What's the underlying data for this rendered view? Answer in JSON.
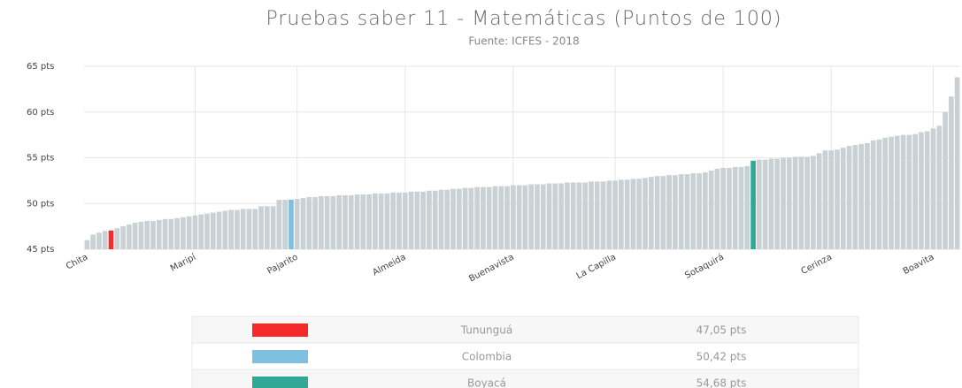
{
  "chart_data": {
    "type": "bar",
    "title": "Pruebas saber 11 - Matemáticas (Puntos de 100)",
    "subtitle": "Fuente: ICFES - 2018",
    "color": "#c9d1d4",
    "grid": true,
    "ylim": [
      45,
      65
    ],
    "yticks": [
      {
        "value": 45,
        "label": "45 pts"
      },
      {
        "value": 50,
        "label": "50 pts"
      },
      {
        "value": 55,
        "label": "55 pts"
      },
      {
        "value": 60,
        "label": "60 pts"
      },
      {
        "value": 65,
        "label": "65 pts"
      }
    ],
    "categories": [
      "Chita",
      null,
      null,
      null,
      null,
      null,
      null,
      null,
      null,
      null,
      null,
      null,
      null,
      null,
      null,
      null,
      null,
      null,
      "Maripí",
      null,
      null,
      null,
      null,
      null,
      null,
      null,
      null,
      null,
      null,
      null,
      null,
      null,
      null,
      null,
      null,
      "Pajarito",
      null,
      null,
      null,
      null,
      null,
      null,
      null,
      null,
      null,
      null,
      null,
      null,
      null,
      null,
      null,
      null,
      null,
      "Almeida",
      null,
      null,
      null,
      null,
      null,
      null,
      null,
      null,
      null,
      null,
      null,
      null,
      null,
      null,
      null,
      null,
      null,
      "Buenavista",
      null,
      null,
      null,
      null,
      null,
      null,
      null,
      null,
      null,
      null,
      null,
      null,
      null,
      null,
      null,
      null,
      "La Capilla",
      null,
      null,
      null,
      null,
      null,
      null,
      null,
      null,
      null,
      null,
      null,
      null,
      null,
      null,
      null,
      null,
      null,
      "Sotaquirá",
      null,
      null,
      null,
      null,
      null,
      null,
      null,
      null,
      null,
      null,
      null,
      null,
      null,
      null,
      null,
      null,
      null,
      "Cerinza",
      null,
      null,
      null,
      null,
      null,
      null,
      null,
      null,
      null,
      null,
      null,
      null,
      null,
      null,
      null,
      null,
      "Boavita",
      null,
      null,
      null,
      null
    ],
    "values": [
      46.0,
      46.6,
      46.8,
      47.0,
      47.05,
      47.3,
      47.5,
      47.7,
      47.9,
      48.0,
      48.1,
      48.1,
      48.2,
      48.3,
      48.3,
      48.4,
      48.5,
      48.6,
      48.7,
      48.8,
      48.9,
      49.0,
      49.1,
      49.2,
      49.3,
      49.3,
      49.4,
      49.4,
      49.4,
      49.7,
      49.7,
      49.7,
      50.4,
      50.4,
      50.42,
      50.5,
      50.6,
      50.7,
      50.7,
      50.8,
      50.8,
      50.8,
      50.9,
      50.9,
      50.9,
      51.0,
      51.0,
      51.0,
      51.1,
      51.1,
      51.1,
      51.2,
      51.2,
      51.2,
      51.3,
      51.3,
      51.3,
      51.4,
      51.4,
      51.5,
      51.5,
      51.6,
      51.6,
      51.7,
      51.7,
      51.8,
      51.8,
      51.8,
      51.9,
      51.9,
      51.9,
      52.0,
      52.0,
      52.0,
      52.1,
      52.1,
      52.1,
      52.2,
      52.2,
      52.2,
      52.3,
      52.3,
      52.3,
      52.3,
      52.4,
      52.4,
      52.4,
      52.5,
      52.5,
      52.6,
      52.6,
      52.7,
      52.7,
      52.8,
      52.9,
      53.0,
      53.0,
      53.1,
      53.1,
      53.2,
      53.2,
      53.3,
      53.3,
      53.4,
      53.6,
      53.8,
      53.9,
      53.9,
      54.0,
      54.0,
      54.1,
      54.68,
      54.8,
      54.8,
      54.9,
      54.9,
      55.0,
      55.0,
      55.1,
      55.1,
      55.1,
      55.2,
      55.5,
      55.8,
      55.8,
      55.9,
      56.1,
      56.3,
      56.4,
      56.5,
      56.6,
      56.9,
      57.0,
      57.2,
      57.3,
      57.4,
      57.5,
      57.5,
      57.6,
      57.8,
      57.9,
      58.2,
      58.5,
      60.0,
      61.7,
      63.8
    ],
    "highlights": {
      "names": [
        "Tununguá",
        "Colombia",
        "Boyacá"
      ],
      "colors": [
        "#f52a2a",
        "#7fbfe0",
        "#2fa995"
      ],
      "values": [
        47.05,
        50.42,
        54.68
      ],
      "value_labels": [
        "47,05 pts",
        "50,42 pts",
        "54,68 pts"
      ]
    }
  }
}
